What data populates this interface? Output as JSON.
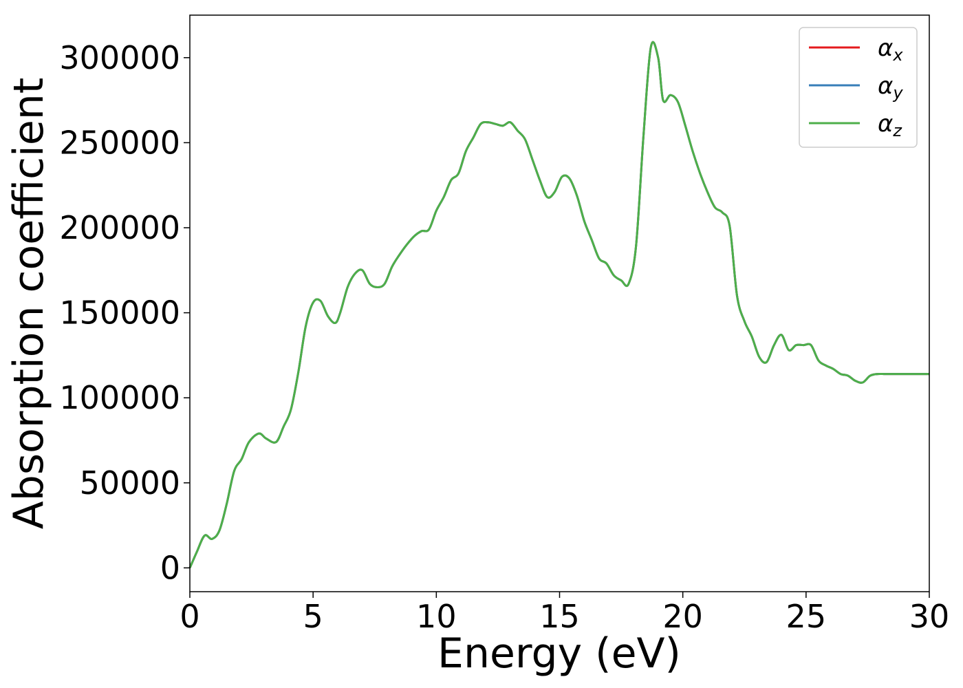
{
  "chart_data": {
    "type": "line",
    "title": "",
    "xlabel": "Energy (eV)",
    "ylabel": "Absorption coefficient",
    "xlim": [
      0,
      30
    ],
    "ylim": [
      -14000,
      325000
    ],
    "xticks": [
      0,
      5,
      10,
      15,
      20,
      25,
      30
    ],
    "yticks": [
      0,
      50000,
      100000,
      150000,
      200000,
      250000,
      300000
    ],
    "xtick_labels": [
      "0",
      "5",
      "10",
      "15",
      "20",
      "25",
      "30"
    ],
    "ytick_labels": [
      "0",
      "50000",
      "100000",
      "150000",
      "200000",
      "250000",
      "300000"
    ],
    "grid": false,
    "legend_position": "top-right",
    "x": [
      0,
      0.3,
      0.6,
      0.9,
      1.2,
      1.5,
      1.8,
      2.1,
      2.4,
      2.8,
      3.1,
      3.5,
      3.8,
      4.1,
      4.4,
      4.7,
      5.0,
      5.3,
      5.6,
      5.9,
      6.1,
      6.4,
      6.7,
      7.0,
      7.3,
      7.6,
      7.9,
      8.2,
      8.5,
      8.8,
      9.1,
      9.4,
      9.7,
      10.0,
      10.3,
      10.6,
      10.9,
      11.2,
      11.5,
      11.8,
      12.1,
      12.4,
      12.7,
      13.0,
      13.3,
      13.6,
      13.9,
      14.2,
      14.5,
      14.8,
      15.1,
      15.4,
      15.7,
      16.0,
      16.3,
      16.6,
      16.9,
      17.2,
      17.5,
      17.8,
      18.1,
      18.4,
      18.7,
      19.0,
      19.2,
      19.5,
      19.8,
      20.1,
      20.4,
      20.7,
      21.0,
      21.3,
      21.6,
      21.9,
      22.2,
      22.5,
      22.8,
      23.1,
      23.4,
      23.7,
      24.0,
      24.3,
      24.6,
      24.9,
      25.2,
      25.5,
      25.8,
      26.1,
      26.4,
      26.7,
      27.0,
      27.3,
      27.6,
      27.9,
      28.2,
      28.5,
      28.8,
      29.1,
      29.4,
      29.7,
      30.0
    ],
    "series": [
      {
        "name": "α_x",
        "color": "#e41a1c",
        "values": [
          0,
          10000,
          19000,
          17000,
          22000,
          38000,
          57000,
          64000,
          74000,
          79000,
          76000,
          74000,
          83000,
          93000,
          115000,
          142000,
          156000,
          157000,
          148000,
          144000,
          150000,
          165000,
          173000,
          175000,
          167000,
          165000,
          167000,
          177000,
          184000,
          190000,
          195000,
          198000,
          199000,
          210000,
          218000,
          228000,
          232000,
          245000,
          253000,
          261000,
          262000,
          261000,
          260000,
          262000,
          257000,
          252000,
          240000,
          228000,
          218000,
          221000,
          230000,
          229000,
          219000,
          204000,
          193000,
          182000,
          179000,
          172000,
          169000,
          167000,
          189000,
          253000,
          306000,
          300000,
          275000,
          278000,
          274000,
          260000,
          245000,
          232000,
          221000,
          212000,
          209000,
          201000,
          160000,
          145000,
          136000,
          124000,
          121000,
          131000,
          137000,
          128000,
          131000,
          131000,
          131000,
          122000,
          119000,
          117000,
          114000,
          113000,
          110000,
          109000,
          113000,
          114000,
          114000,
          114000,
          114000,
          114000,
          114000,
          114000,
          114000
        ]
      },
      {
        "name": "α_y",
        "color": "#377eb8",
        "values": [
          0,
          10000,
          19000,
          17000,
          22000,
          38000,
          57000,
          64000,
          74000,
          79000,
          76000,
          74000,
          83000,
          93000,
          115000,
          142000,
          156000,
          157000,
          148000,
          144000,
          150000,
          165000,
          173000,
          175000,
          167000,
          165000,
          167000,
          177000,
          184000,
          190000,
          195000,
          198000,
          199000,
          210000,
          218000,
          228000,
          232000,
          245000,
          253000,
          261000,
          262000,
          261000,
          260000,
          262000,
          257000,
          252000,
          240000,
          228000,
          218000,
          221000,
          230000,
          229000,
          219000,
          204000,
          193000,
          182000,
          179000,
          172000,
          169000,
          167000,
          189000,
          253000,
          306000,
          300000,
          275000,
          278000,
          274000,
          260000,
          245000,
          232000,
          221000,
          212000,
          209000,
          201000,
          160000,
          145000,
          136000,
          124000,
          121000,
          131000,
          137000,
          128000,
          131000,
          131000,
          131000,
          122000,
          119000,
          117000,
          114000,
          113000,
          110000,
          109000,
          113000,
          114000,
          114000,
          114000,
          114000,
          114000,
          114000,
          114000,
          114000
        ]
      },
      {
        "name": "α_z",
        "color": "#4daf4a",
        "values": [
          0,
          10000,
          19000,
          17000,
          22000,
          38000,
          57000,
          64000,
          74000,
          79000,
          76000,
          74000,
          83000,
          93000,
          115000,
          142000,
          156000,
          157000,
          148000,
          144000,
          150000,
          165000,
          173000,
          175000,
          167000,
          165000,
          167000,
          177000,
          184000,
          190000,
          195000,
          198000,
          199000,
          210000,
          218000,
          228000,
          232000,
          245000,
          253000,
          261000,
          262000,
          261000,
          260000,
          262000,
          257000,
          252000,
          240000,
          228000,
          218000,
          221000,
          230000,
          229000,
          219000,
          204000,
          193000,
          182000,
          179000,
          172000,
          169000,
          167000,
          189000,
          253000,
          306000,
          300000,
          275000,
          278000,
          274000,
          260000,
          245000,
          232000,
          221000,
          212000,
          209000,
          201000,
          160000,
          145000,
          136000,
          124000,
          121000,
          131000,
          137000,
          128000,
          131000,
          131000,
          131000,
          122000,
          119000,
          117000,
          114000,
          113000,
          110000,
          109000,
          113000,
          114000,
          114000,
          114000,
          114000,
          114000,
          114000,
          114000,
          114000
        ]
      }
    ],
    "legend": [
      {
        "symbol": "α",
        "sub": "x",
        "color": "#e41a1c"
      },
      {
        "symbol": "α",
        "sub": "y",
        "color": "#377eb8"
      },
      {
        "symbol": "α",
        "sub": "z",
        "color": "#4daf4a"
      }
    ]
  }
}
